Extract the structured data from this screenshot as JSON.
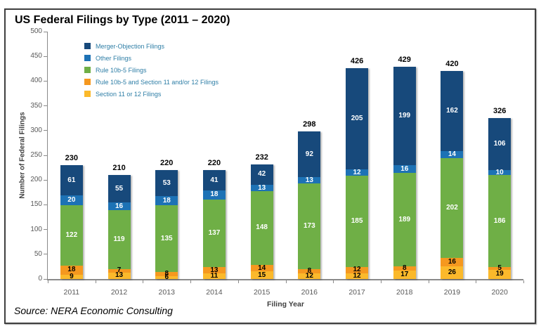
{
  "header": {
    "title": "US Federal Filings by Type (2011 – 2020)"
  },
  "source_note": "Source: NERA Economic Consulting",
  "chart_data": {
    "type": "bar",
    "stacked": true,
    "title": "US Federal Filings by Type (2011 – 2020)",
    "xlabel": "Filing Year",
    "ylabel": "Number of Federal Filings",
    "ylim": [
      0,
      500
    ],
    "yticks": [
      0,
      50,
      100,
      150,
      200,
      250,
      300,
      350,
      400,
      450,
      500
    ],
    "grid": false,
    "legend_position": "upper-left-inside",
    "categories": [
      "2011",
      "2012",
      "2013",
      "2014",
      "2015",
      "2016",
      "2017",
      "2018",
      "2019",
      "2020"
    ],
    "series": [
      {
        "name": "Merger-Objection Filings",
        "color": "#17497b",
        "label_color": "#ffffff",
        "values": [
          61,
          55,
          53,
          41,
          42,
          92,
          205,
          199,
          162,
          106
        ]
      },
      {
        "name": "Other Filings",
        "color": "#1d72b5",
        "label_color": "#ffffff",
        "values": [
          20,
          16,
          18,
          18,
          13,
          13,
          12,
          16,
          14,
          10
        ]
      },
      {
        "name": "Rule 10b-5 Filings",
        "color": "#6faf46",
        "label_color": "#ffffff",
        "values": [
          122,
          119,
          135,
          137,
          148,
          173,
          185,
          189,
          202,
          186
        ]
      },
      {
        "name": "Rule 10b-5 and Section 11 and/or 12 Filings",
        "color": "#f5981f",
        "label_color": "#000000",
        "values": [
          18,
          7,
          8,
          13,
          14,
          8,
          12,
          8,
          16,
          5
        ]
      },
      {
        "name": "Section 11 or 12 Filings",
        "color": "#fbb92b",
        "label_color": "#000000",
        "values": [
          9,
          13,
          6,
          11,
          15,
          12,
          12,
          17,
          26,
          19
        ]
      }
    ],
    "totals": [
      230,
      210,
      220,
      220,
      232,
      298,
      426,
      429,
      420,
      326
    ],
    "axis_color": "#8a8a8a",
    "tick_label_color": "#595959",
    "legend_text_color": "#2e7ea6"
  }
}
